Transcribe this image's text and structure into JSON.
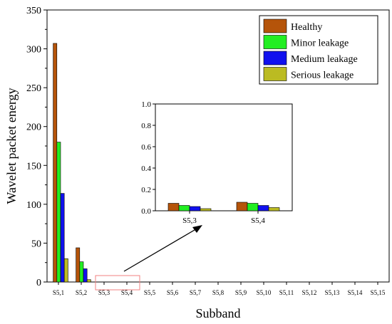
{
  "chart_data": [
    {
      "type": "bar",
      "xlabel": "Subband",
      "ylabel": "Wavelet packet energy",
      "ylim": [
        0,
        350
      ],
      "yticks": [
        "0",
        "50",
        "100",
        "150",
        "200",
        "250",
        "300",
        "350"
      ],
      "categories": [
        "S5,1",
        "S5,2",
        "S5,3",
        "S5,4",
        "S5,5",
        "S5,6",
        "S5,7",
        "S5,8",
        "S5,9",
        "S5,10",
        "S5,11",
        "S5,12",
        "S5,13",
        "S5,14",
        "S5,15"
      ],
      "series": [
        {
          "name": "Healthy",
          "color": "#b5540a",
          "values": [
            307,
            44,
            0.07,
            0.08,
            0,
            0,
            0,
            0,
            0,
            0,
            0,
            0,
            0,
            0,
            0
          ]
        },
        {
          "name": "Minor leakage",
          "color": "#22ee22",
          "values": [
            180,
            26,
            0.05,
            0.07,
            0,
            0,
            0,
            0,
            0,
            0,
            0,
            0,
            0,
            0,
            0
          ]
        },
        {
          "name": "Medium leakage",
          "color": "#1111ee",
          "values": [
            114,
            17,
            0.04,
            0.05,
            0,
            0,
            0,
            0,
            0,
            0,
            0,
            0,
            0,
            0,
            0
          ]
        },
        {
          "name": "Serious leakage",
          "color": "#bbbb22",
          "values": [
            30,
            3,
            0.02,
            0.03,
            0,
            0,
            0,
            0,
            0,
            0,
            0,
            0,
            0,
            0,
            0
          ]
        }
      ],
      "legend_position": "top-right",
      "grid": false
    },
    {
      "type": "bar",
      "role": "inset",
      "ylim": [
        0,
        1.0
      ],
      "yticks": [
        "0.0",
        "0.2",
        "0.4",
        "0.6",
        "0.8",
        "1.0"
      ],
      "categories": [
        "S5,3",
        "S5,4"
      ],
      "series": [
        {
          "name": "Healthy",
          "values": [
            0.07,
            0.08
          ]
        },
        {
          "name": "Minor leakage",
          "values": [
            0.05,
            0.07
          ]
        },
        {
          "name": "Medium leakage",
          "values": [
            0.04,
            0.05
          ]
        },
        {
          "name": "Serious leakage",
          "values": [
            0.02,
            0.03
          ]
        }
      ]
    }
  ]
}
